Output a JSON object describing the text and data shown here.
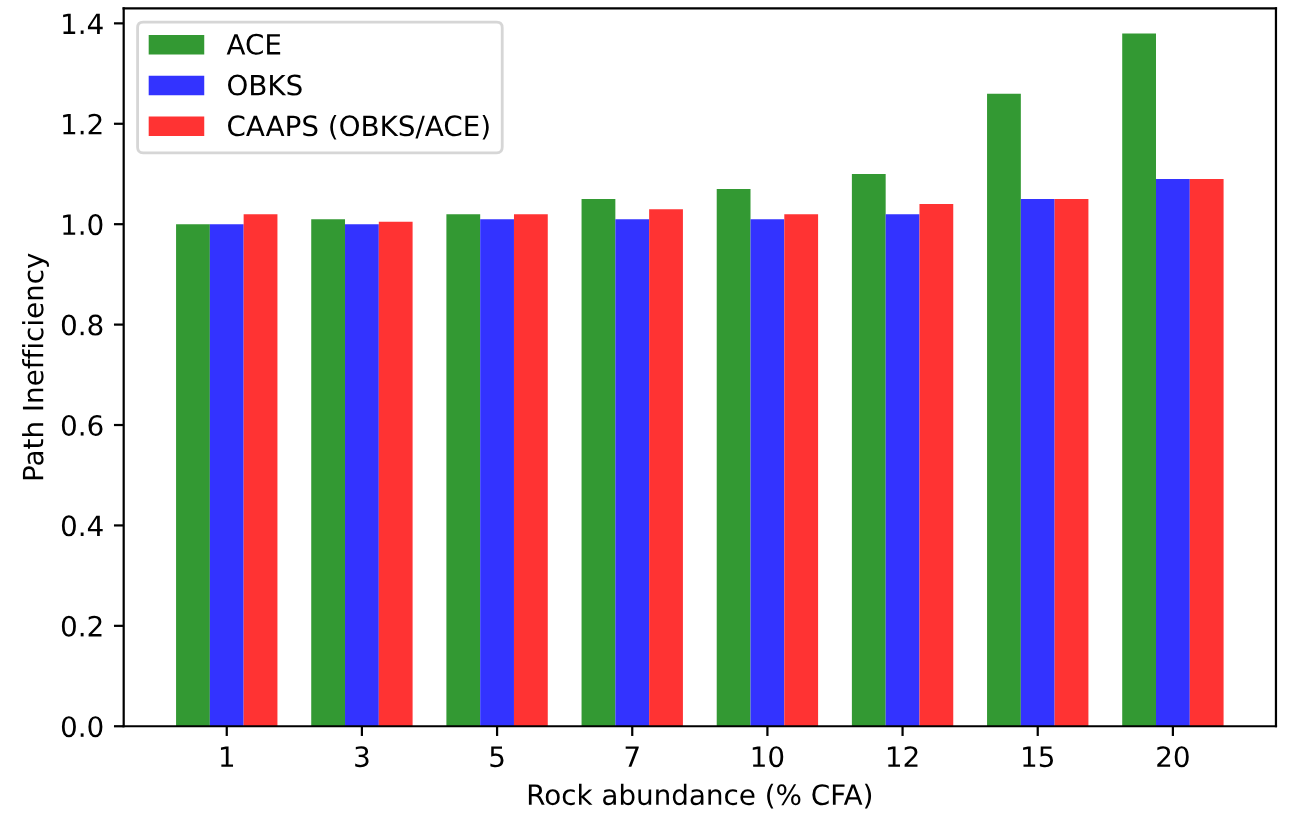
{
  "chart_data": {
    "type": "bar",
    "xlabel": "Rock abundance (% CFA)",
    "ylabel": "Path Inefficiency",
    "categories": [
      "1",
      "3",
      "5",
      "7",
      "10",
      "12",
      "15",
      "20"
    ],
    "series": [
      {
        "name": "ACE",
        "color": "#339933",
        "values": [
          1.0,
          1.01,
          1.02,
          1.05,
          1.07,
          1.1,
          1.26,
          1.38
        ]
      },
      {
        "name": "OBKS",
        "color": "#3333ff",
        "values": [
          1.0,
          1.0,
          1.01,
          1.01,
          1.01,
          1.02,
          1.05,
          1.09
        ]
      },
      {
        "name": "CAAPS (OBKS/ACE)",
        "color": "#ff3333",
        "values": [
          1.02,
          1.005,
          1.02,
          1.03,
          1.02,
          1.04,
          1.05,
          1.09
        ]
      }
    ],
    "ylim": [
      0,
      1.43
    ],
    "yticks": [
      {
        "value": 0,
        "label": "0.0"
      },
      {
        "value": 0.2,
        "label": "0.2"
      },
      {
        "value": 0.4,
        "label": "0.4"
      },
      {
        "value": 0.6,
        "label": "0.6"
      },
      {
        "value": 0.8,
        "label": "0.8"
      },
      {
        "value": 1.0,
        "label": "1.0"
      },
      {
        "value": 1.2,
        "label": "1.2"
      },
      {
        "value": 1.4,
        "label": "1.4"
      }
    ],
    "grid": false,
    "legend": "top left"
  }
}
